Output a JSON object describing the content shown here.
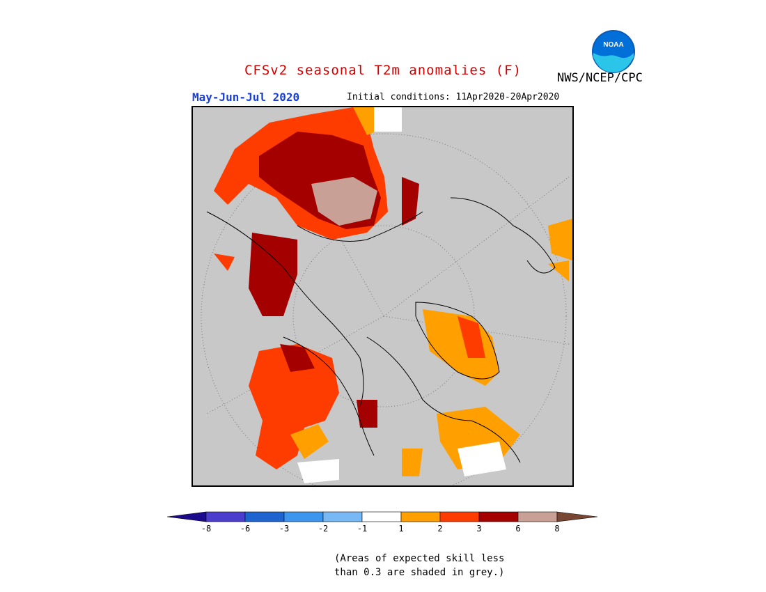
{
  "header": {
    "title": "CFSv2 seasonal T2m anomalies (F)",
    "agency": "NWS/NCEP/CPC",
    "logo_text": "NOAA",
    "season": "May-Jun-Jul 2020",
    "initial_conditions": "Initial conditions: 11Apr2020-20Apr2020"
  },
  "colors": {
    "title": "#d40000",
    "season": "#1a3fd6",
    "skill_grey": "#c8c8c8"
  },
  "colorbar": {
    "labels": [
      "-8",
      "-6",
      "-3",
      "-2",
      "-1",
      "1",
      "2",
      "3",
      "6",
      "8"
    ],
    "colors": [
      "#1c0a8c",
      "#4a3ccc",
      "#1e64d0",
      "#3c96f0",
      "#78b9f5",
      "#ffffff",
      "#ffa000",
      "#ff3c00",
      "#a50000",
      "#c8a096",
      "#784632"
    ]
  },
  "note": {
    "line1": "(Areas of expected skill less",
    "line2": "than 0.3 are shaded in grey.)"
  }
}
